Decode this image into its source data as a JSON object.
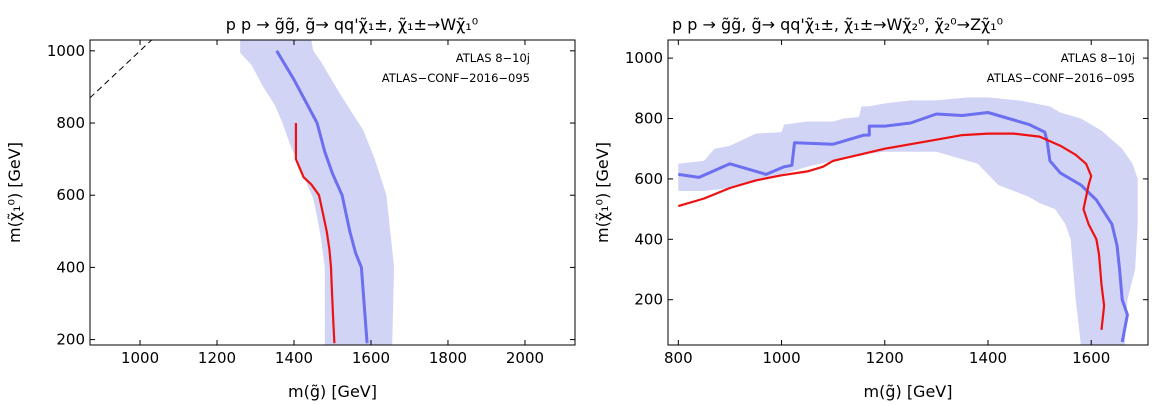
{
  "chart_data": [
    {
      "type": "line",
      "title": "p p → g̃g̃,  g̃→ qq'χ̃₁±, χ̃₁±→Wχ̃₁⁰",
      "xlabel": "m(g̃) [GeV]",
      "ylabel": "m(χ̃₁⁰) [GeV]",
      "xlim": [
        870,
        2130
      ],
      "ylim": [
        185,
        1030
      ],
      "xticks": [
        1000,
        1200,
        1400,
        1600,
        1800,
        2000
      ],
      "yticks": [
        200,
        400,
        600,
        800,
        1000
      ],
      "annotations": [
        "ATLAS 8−10j",
        "ATLAS−CONF−2016−095"
      ],
      "grid": false,
      "series": [
        {
          "role": "band",
          "color": "#d2d4f6",
          "points": [
            [
              1260,
              995
            ],
            [
              1290,
              960
            ],
            [
              1320,
              900
            ],
            [
              1350,
              850
            ],
            [
              1370,
              800
            ],
            [
              1390,
              740
            ],
            [
              1410,
              690
            ],
            [
              1430,
              640
            ],
            [
              1450,
              590
            ],
            [
              1460,
              540
            ],
            [
              1470,
              480
            ],
            [
              1480,
              400
            ],
            [
              1480,
              185
            ],
            [
              1655,
              185
            ],
            [
              1660,
              400
            ],
            [
              1640,
              600
            ],
            [
              1610,
              700
            ],
            [
              1580,
              780
            ],
            [
              1550,
              830
            ],
            [
              1520,
              880
            ],
            [
              1470,
              970
            ],
            [
              1450,
              1000
            ],
            [
              1445,
              1030
            ],
            [
              1260,
              1030
            ]
          ]
        },
        {
          "role": "expected",
          "color": "#6b6ff0",
          "points": [
            [
              1355,
              1000
            ],
            [
              1400,
              920
            ],
            [
              1460,
              800
            ],
            [
              1480,
              720
            ],
            [
              1500,
              660
            ],
            [
              1525,
              600
            ],
            [
              1545,
              500
            ],
            [
              1560,
              440
            ],
            [
              1575,
              400
            ],
            [
              1582,
              300
            ],
            [
              1590,
              190
            ]
          ]
        },
        {
          "role": "observed",
          "color": "#ee1111",
          "points": [
            [
              1405,
              800
            ],
            [
              1405,
              700
            ],
            [
              1425,
              650
            ],
            [
              1445,
              630
            ],
            [
              1465,
              600
            ],
            [
              1475,
              550
            ],
            [
              1485,
              500
            ],
            [
              1492,
              450
            ],
            [
              1496,
              400
            ],
            [
              1498,
              350
            ],
            [
              1500,
              300
            ],
            [
              1502,
              250
            ],
            [
              1505,
              190
            ]
          ]
        },
        {
          "role": "diagonal",
          "color": "#000000",
          "points": [
            [
              870,
              870
            ],
            [
              1030,
              1030
            ]
          ]
        }
      ]
    },
    {
      "type": "line",
      "title": "p p → g̃g̃,  g̃→ qq'χ̃₁±, χ̃₁±→Wχ̃₂⁰, χ̃₂⁰→Zχ̃₁⁰",
      "xlabel": "m(g̃) [GeV]",
      "ylabel": "m(χ̃₁⁰) [GeV]",
      "xlim": [
        780,
        1710
      ],
      "ylim": [
        50,
        1060
      ],
      "xticks": [
        800,
        1000,
        1200,
        1400,
        1600
      ],
      "yticks": [
        200,
        400,
        600,
        800,
        1000
      ],
      "annotations": [
        "ATLAS 8−10j",
        "ATLAS−CONF−2016−095"
      ],
      "grid": false,
      "series": [
        {
          "role": "band",
          "color": "#d2d4f6",
          "points": [
            [
              800,
              650
            ],
            [
              850,
              660
            ],
            [
              870,
              700
            ],
            [
              900,
              710
            ],
            [
              950,
              750
            ],
            [
              1000,
              755
            ],
            [
              1005,
              780
            ],
            [
              1050,
              790
            ],
            [
              1100,
              790
            ],
            [
              1120,
              800
            ],
            [
              1150,
              805
            ],
            [
              1155,
              840
            ],
            [
              1170,
              840
            ],
            [
              1200,
              850
            ],
            [
              1250,
              860
            ],
            [
              1300,
              860
            ],
            [
              1360,
              870
            ],
            [
              1400,
              870
            ],
            [
              1460,
              860
            ],
            [
              1520,
              840
            ],
            [
              1540,
              820
            ],
            [
              1580,
              800
            ],
            [
              1620,
              760
            ],
            [
              1660,
              700
            ],
            [
              1680,
              650
            ],
            [
              1690,
              600
            ],
            [
              1690,
              450
            ],
            [
              1685,
              300
            ],
            [
              1670,
              200
            ],
            [
              1665,
              50
            ],
            [
              1580,
              50
            ],
            [
              1570,
              200
            ],
            [
              1565,
              300
            ],
            [
              1560,
              400
            ],
            [
              1550,
              450
            ],
            [
              1530,
              500
            ],
            [
              1500,
              520
            ],
            [
              1480,
              540
            ],
            [
              1420,
              580
            ],
            [
              1380,
              650
            ],
            [
              1300,
              690
            ],
            [
              1200,
              690
            ],
            [
              1150,
              680
            ],
            [
              1100,
              660
            ],
            [
              1050,
              640
            ],
            [
              1000,
              615
            ],
            [
              950,
              590
            ],
            [
              900,
              570
            ],
            [
              850,
              560
            ],
            [
              800,
              560
            ]
          ]
        },
        {
          "role": "expected",
          "color": "#6b6ff0",
          "points": [
            [
              800,
              615
            ],
            [
              840,
              605
            ],
            [
              900,
              650
            ],
            [
              970,
              615
            ],
            [
              1005,
              640
            ],
            [
              1020,
              645
            ],
            [
              1025,
              720
            ],
            [
              1100,
              715
            ],
            [
              1150,
              740
            ],
            [
              1160,
              745
            ],
            [
              1170,
              745
            ],
            [
              1170,
              775
            ],
            [
              1200,
              775
            ],
            [
              1250,
              785
            ],
            [
              1300,
              815
            ],
            [
              1350,
              810
            ],
            [
              1400,
              820
            ],
            [
              1450,
              795
            ],
            [
              1480,
              780
            ],
            [
              1510,
              755
            ],
            [
              1515,
              720
            ],
            [
              1520,
              660
            ],
            [
              1540,
              620
            ],
            [
              1580,
              580
            ],
            [
              1610,
              530
            ],
            [
              1640,
              450
            ],
            [
              1650,
              380
            ],
            [
              1655,
              300
            ],
            [
              1660,
              200
            ],
            [
              1670,
              150
            ],
            [
              1660,
              60
            ]
          ]
        },
        {
          "role": "observed",
          "color": "#ee1111",
          "points": [
            [
              800,
              510
            ],
            [
              850,
              535
            ],
            [
              900,
              570
            ],
            [
              950,
              595
            ],
            [
              1000,
              612
            ],
            [
              1050,
              625
            ],
            [
              1080,
              640
            ],
            [
              1100,
              660
            ],
            [
              1150,
              680
            ],
            [
              1200,
              700
            ],
            [
              1250,
              715
            ],
            [
              1300,
              730
            ],
            [
              1350,
              745
            ],
            [
              1400,
              750
            ],
            [
              1450,
              750
            ],
            [
              1500,
              740
            ],
            [
              1540,
              710
            ],
            [
              1570,
              680
            ],
            [
              1590,
              650
            ],
            [
              1600,
              610
            ],
            [
              1595,
              580
            ],
            [
              1585,
              500
            ],
            [
              1595,
              450
            ],
            [
              1610,
              400
            ],
            [
              1615,
              350
            ],
            [
              1620,
              250
            ],
            [
              1625,
              180
            ],
            [
              1620,
              100
            ]
          ]
        }
      ]
    }
  ]
}
